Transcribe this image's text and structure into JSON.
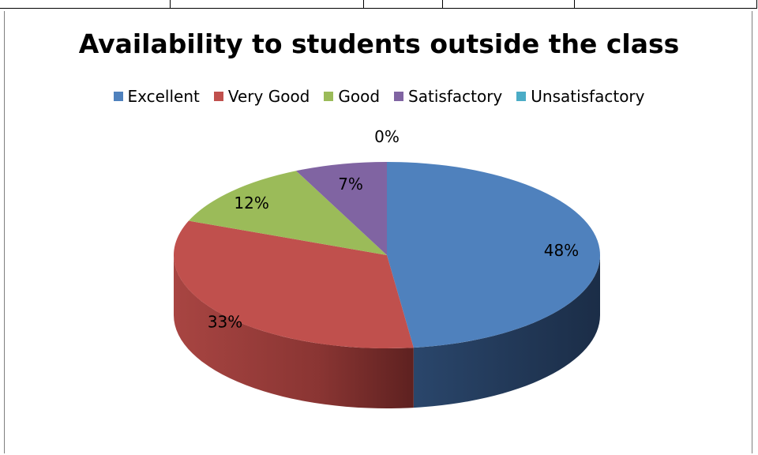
{
  "chart_data": {
    "type": "pie",
    "title": "Availability to students outside the class",
    "legend_position": "top",
    "three_d": true,
    "categories": [
      "Excellent",
      "Very Good",
      "Good",
      "Satisfactory",
      "Unsatisfactory"
    ],
    "values": [
      48,
      33,
      12,
      7,
      0
    ],
    "data_labels": [
      "48%",
      "33%",
      "12%",
      "7%",
      "0%"
    ],
    "colors": [
      "#4f81bd",
      "#c0504d",
      "#9bbb59",
      "#8064a2",
      "#4bacc6"
    ]
  }
}
